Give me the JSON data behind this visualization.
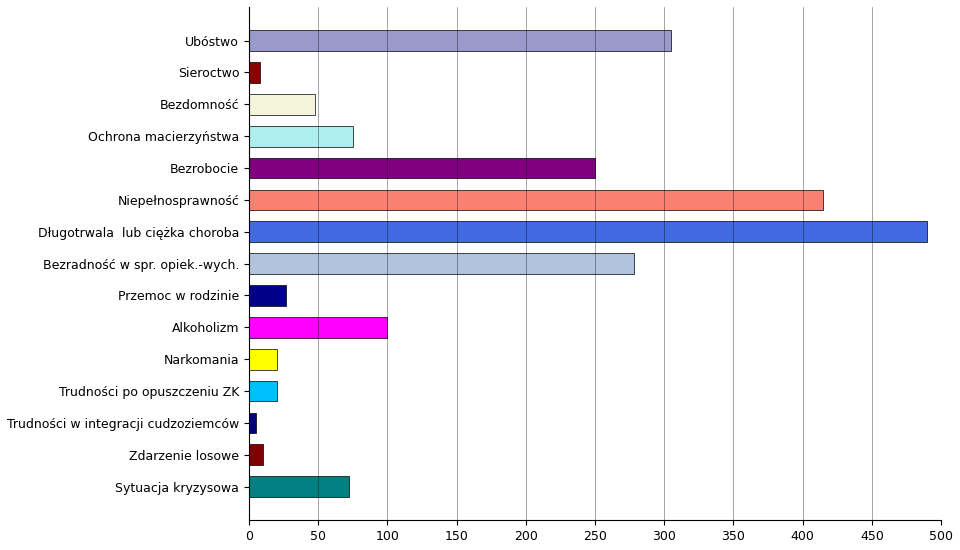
{
  "categories": [
    "Sytuacja kryzysowa",
    "Zdarzenie losowe",
    "Trudności w integracji cudzoziemców",
    "Trudności po opuszczeniu ZK",
    "Narkomania",
    "Alkoholizm",
    "Przemoc w rodzinie",
    "Bezradność w spr. opiek.-wych.",
    "Długotrwala  lub ciężka choroba",
    "Niepełnosprawność",
    "Bezrobocie",
    "Ochrona macierzyństwa",
    "Bezdomność",
    "Sieroctwo",
    "Ubóstwo"
  ],
  "values": [
    72,
    10,
    5,
    20,
    20,
    100,
    27,
    278,
    490,
    415,
    250,
    75,
    48,
    8,
    305
  ],
  "colors": [
    "#008080",
    "#800000",
    "#000080",
    "#00BFFF",
    "#FFFF00",
    "#FF00FF",
    "#00008B",
    "#B0C4DE",
    "#4169E1",
    "#FA8072",
    "#800080",
    "#AFEEEE",
    "#F5F5DC",
    "#8B0000",
    "#9999CC"
  ],
  "xlim": [
    0,
    500
  ],
  "xticks": [
    0,
    50,
    100,
    150,
    200,
    250,
    300,
    350,
    400,
    450,
    500
  ],
  "bar_height": 0.65,
  "background_color": "#FFFFFF",
  "grid_color": "#000000",
  "tick_fontsize": 9,
  "label_fontsize": 9
}
